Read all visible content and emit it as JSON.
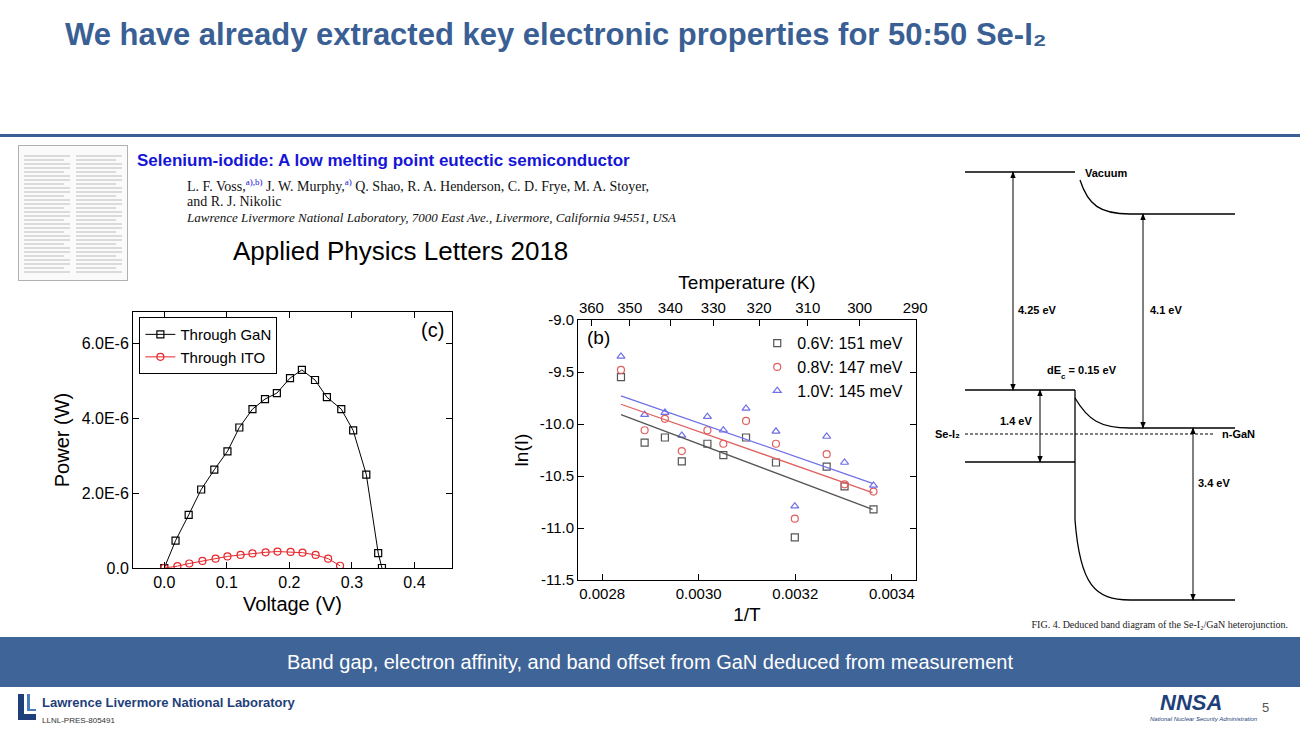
{
  "title": "We have already extracted key electronic properties for 50:50 Se-I₂",
  "paper": {
    "title": "Selenium-iodide: A low melting point eutectic semiconductor",
    "authors": [
      {
        "text": "L. F. Voss,",
        "sup": "a),b)"
      },
      {
        "text": " J. W. Murphy,",
        "sup": "a)"
      },
      {
        "text": " Q. Shao, R. A. Henderson, C. D. Frye, M. A. Stoyer,"
      }
    ],
    "authors_line2": "and R. J. Nikolic",
    "affiliation": "Lawrence Livermore National Laboratory, 7000 East Ave., Livermore, California 94551, USA",
    "journal": "Applied Physics Letters 2018"
  },
  "chart_data": [
    {
      "type": "line",
      "panel_label": "(c)",
      "xlabel": "Voltage (V)",
      "ylabel": "Power (W)",
      "series": [
        {
          "name": "Through GaN",
          "color": "#000000",
          "marker": "square-open",
          "x": [
            0,
            0.018,
            0.039,
            0.059,
            0.08,
            0.101,
            0.12,
            0.141,
            0.161,
            0.18,
            0.201,
            0.22,
            0.241,
            0.26,
            0.283,
            0.302,
            0.323,
            0.342,
            0.348
          ],
          "values": [
            0,
            7.3e-07,
            1.42e-06,
            2.1e-06,
            2.63e-06,
            3.12e-06,
            3.76e-06,
            4.25e-06,
            4.52e-06,
            4.68e-06,
            5.08e-06,
            5.3e-06,
            5.03e-06,
            4.57e-06,
            4.25e-06,
            3.68e-06,
            2.5e-06,
            4e-07,
            0
          ]
        },
        {
          "name": "Through ITO",
          "color": "#e8262a",
          "marker": "circle-open",
          "x": [
            0,
            0.021,
            0.04,
            0.061,
            0.082,
            0.101,
            0.122,
            0.141,
            0.162,
            0.181,
            0.202,
            0.221,
            0.242,
            0.262,
            0.281
          ],
          "values": [
            0,
            5e-08,
            1.2e-07,
            1.9e-07,
            2.5e-07,
            3.1e-07,
            3.5e-07,
            3.9e-07,
            4.2e-07,
            4.4e-07,
            4.3e-07,
            4.1e-07,
            3.5e-07,
            2.5e-07,
            6e-08
          ]
        }
      ],
      "xlim": [
        -0.05,
        0.46
      ],
      "xticks": [
        {
          "value": 0,
          "label": "0.0"
        },
        0.1,
        0.2,
        0.3,
        0.4
      ],
      "ylim": [
        0,
        6.85e-06
      ],
      "yticks": [
        {
          "value": 0,
          "label": "0.0"
        },
        {
          "value": 2e-06,
          "label": "2.0E-6"
        },
        {
          "value": 4e-06,
          "label": "4.0E-6"
        },
        {
          "value": 6e-06,
          "label": "6.0E-6"
        }
      ],
      "legend": "top-left",
      "grid": false
    },
    {
      "type": "scatter",
      "panel_label": "(b)",
      "xlabel": "1/T",
      "ylabel": "ln(I)",
      "x2label": "Temperature (K)",
      "x": [
        0.002839,
        0.002888,
        0.00293,
        0.002965,
        0.003018,
        0.003051,
        0.003098,
        0.00316,
        0.003199,
        0.003265,
        0.003302,
        0.003362
      ],
      "series": [
        {
          "name": "0.6V: 151 meV",
          "color": "#555555",
          "marker": "square-open",
          "values": [
            -9.55,
            -10.18,
            -10.13,
            -10.36,
            -10.19,
            -10.3,
            -10.13,
            -10.37,
            -11.09,
            -10.41,
            -10.6,
            -10.82
          ],
          "fit": {
            "x": [
              0.002839,
              0.00336
            ],
            "values": [
              -9.91,
              -10.82
            ]
          }
        },
        {
          "name": "0.8V: 147 meV",
          "color": "#e06060",
          "marker": "circle-open",
          "values": [
            -9.48,
            -10.06,
            -9.95,
            -10.26,
            -10.06,
            -10.19,
            -9.97,
            -10.19,
            -10.91,
            -10.29,
            -10.58,
            -10.65
          ],
          "fit": {
            "x": [
              0.002839,
              0.00336
            ],
            "values": [
              -9.81,
              -10.66
            ]
          }
        },
        {
          "name": "1.0V: 145 meV",
          "color": "#6f6fe8",
          "marker": "triangle-up-open",
          "values": [
            -9.35,
            -9.91,
            -9.89,
            -10.11,
            -9.93,
            -10.06,
            -9.85,
            -10.07,
            -10.79,
            -10.12,
            -10.37,
            -10.59
          ],
          "fit": {
            "x": [
              0.002839,
              0.00336
            ],
            "values": [
              -9.73,
              -10.57
            ]
          }
        }
      ],
      "xlim": [
        0.00275,
        0.00345
      ],
      "xticks": [
        0.0028,
        {
          "value": 0.003,
          "label": "0.0030"
        },
        0.0032,
        0.0034
      ],
      "x2ticks": [
        {
          "value": 0.0027778,
          "label": "360"
        },
        {
          "value": 0.0028571,
          "label": "350"
        },
        {
          "value": 0.0029412,
          "label": "340"
        },
        {
          "value": 0.0030303,
          "label": "330"
        },
        {
          "value": 0.003125,
          "label": "320"
        },
        {
          "value": 0.0032258,
          "label": "310"
        },
        {
          "value": 0.0033333,
          "label": "300"
        },
        {
          "value": 0.0034483,
          "label": "290"
        }
      ],
      "ylim": [
        -11.5,
        -9.0
      ],
      "yticks": [
        {
          "value": -11.5,
          "label": "-11.5"
        },
        {
          "value": -11,
          "label": "-11.0"
        },
        -10.5,
        {
          "value": -10,
          "label": "-10.0"
        },
        -9.5,
        {
          "value": -9,
          "label": "-9.0"
        }
      ],
      "legend": "top-right",
      "grid": false
    }
  ],
  "band_diagram": {
    "vacuum": "Vacuum",
    "left_affinity": "4.25 eV",
    "right_affinity": "4.1 eV",
    "offset": {
      "text": "dE",
      "sub": "c",
      "after": " = 0.15 eV"
    },
    "left_gap": "1.4 eV",
    "right_gap": "3.4 eV",
    "left_material": "Se-I₂",
    "right_material": "n-GaN",
    "caption": "FIG. 4. Deduced band diagram of the Se-I₂/GaN heterojunction."
  },
  "banner": "Band gap, electron affinity, and band offset from GaN deduced from measurement",
  "footer": {
    "organization": "Lawrence Livermore National Laboratory",
    "doc_id": "LLNL-PRES-805491",
    "page": "5",
    "logo": "NNSA",
    "logo_subtitle": "National Nuclear Security Administration"
  }
}
